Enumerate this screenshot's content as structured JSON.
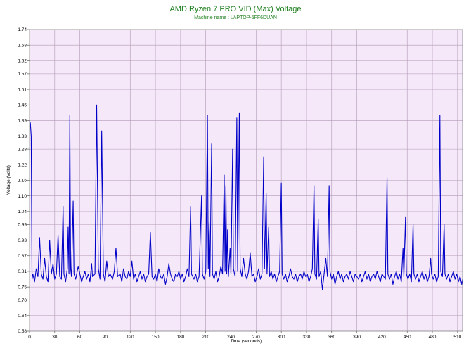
{
  "chart_data": {
    "type": "line",
    "title": "AMD Ryzen 7 PRO VID (Max) Voltage",
    "subtitle": "Machine name : LAPTOP-5FF6DUAN",
    "xlabel": "Time (seconds)",
    "ylabel": "Voltage (Volts)",
    "xlim": [
      0,
      516
    ],
    "ylim": [
      0.58,
      1.74
    ],
    "x_ticks": [
      "0",
      "30",
      "60",
      "90",
      "120",
      "150",
      "180",
      "210",
      "240",
      "270",
      "300",
      "330",
      "360",
      "390",
      "420",
      "450",
      "480",
      "510"
    ],
    "y_ticks": [
      "0.58",
      "0.64",
      "0.70",
      "0.75",
      "0.81",
      "0.87",
      "0.93",
      "0.99",
      "1.04",
      "1.10",
      "1.16",
      "1.22",
      "1.28",
      "1.33",
      "1.39",
      "1.45",
      "1.51",
      "1.57",
      "1.62",
      "1.68",
      "1.74"
    ],
    "grid": true,
    "legend": "none",
    "background_color": "#f5e8f8",
    "grid_color": "#b29ab8",
    "line_color": "#0000c8",
    "title_color": "#208020",
    "baseline_voltage": 0.78,
    "series": [
      {
        "points": [
          [
            0,
            1.39
          ],
          [
            1,
            1.38
          ],
          [
            2,
            1.33
          ],
          [
            3,
            0.78
          ],
          [
            4,
            0.8
          ],
          [
            6,
            0.77
          ],
          [
            8,
            0.82
          ],
          [
            10,
            0.79
          ],
          [
            12,
            0.94
          ],
          [
            14,
            0.8
          ],
          [
            16,
            0.78
          ],
          [
            18,
            0.86
          ],
          [
            20,
            0.79
          ],
          [
            22,
            0.77
          ],
          [
            24,
            0.93
          ],
          [
            26,
            0.8
          ],
          [
            28,
            0.84
          ],
          [
            30,
            0.78
          ],
          [
            32,
            0.8
          ],
          [
            34,
            0.95
          ],
          [
            36,
            0.79
          ],
          [
            38,
            0.78
          ],
          [
            40,
            1.06
          ],
          [
            41,
            0.8
          ],
          [
            43,
            0.77
          ],
          [
            45,
            0.82
          ],
          [
            46,
            0.98
          ],
          [
            47,
            0.8
          ],
          [
            48,
            1.41
          ],
          [
            49,
            0.82
          ],
          [
            50,
            0.79
          ],
          [
            52,
            1.08
          ],
          [
            53,
            0.8
          ],
          [
            55,
            0.78
          ],
          [
            58,
            0.83
          ],
          [
            60,
            0.8
          ],
          [
            62,
            0.77
          ],
          [
            64,
            0.79
          ],
          [
            66,
            0.81
          ],
          [
            68,
            0.78
          ],
          [
            70,
            0.8
          ],
          [
            72,
            0.77
          ],
          [
            74,
            0.84
          ],
          [
            75,
            0.79
          ],
          [
            78,
            0.8
          ],
          [
            80,
            1.45
          ],
          [
            82,
            0.82
          ],
          [
            84,
            0.78
          ],
          [
            86,
            1.35
          ],
          [
            88,
            0.8
          ],
          [
            90,
            0.77
          ],
          [
            92,
            0.85
          ],
          [
            94,
            0.79
          ],
          [
            96,
            0.8
          ],
          [
            99,
            0.78
          ],
          [
            101,
            0.81
          ],
          [
            103,
            0.9
          ],
          [
            105,
            0.79
          ],
          [
            108,
            0.8
          ],
          [
            110,
            0.77
          ],
          [
            112,
            0.82
          ],
          [
            114,
            0.79
          ],
          [
            116,
            0.78
          ],
          [
            118,
            0.81
          ],
          [
            120,
            0.79
          ],
          [
            122,
            0.85
          ],
          [
            124,
            0.78
          ],
          [
            126,
            0.8
          ],
          [
            128,
            0.77
          ],
          [
            130,
            0.79
          ],
          [
            132,
            0.81
          ],
          [
            134,
            0.78
          ],
          [
            136,
            0.8
          ],
          [
            138,
            0.77
          ],
          [
            140,
            0.79
          ],
          [
            142,
            0.8
          ],
          [
            144,
            0.96
          ],
          [
            146,
            0.79
          ],
          [
            148,
            0.78
          ],
          [
            150,
            0.8
          ],
          [
            152,
            0.77
          ],
          [
            154,
            0.82
          ],
          [
            156,
            0.79
          ],
          [
            158,
            0.78
          ],
          [
            160,
            0.8
          ],
          [
            162,
            0.76
          ],
          [
            164,
            0.79
          ],
          [
            166,
            0.84
          ],
          [
            168,
            0.8
          ],
          [
            170,
            0.78
          ],
          [
            172,
            0.77
          ],
          [
            174,
            0.8
          ],
          [
            176,
            0.79
          ],
          [
            178,
            0.81
          ],
          [
            180,
            0.78
          ],
          [
            182,
            0.8
          ],
          [
            184,
            0.77
          ],
          [
            186,
            0.79
          ],
          [
            188,
            0.82
          ],
          [
            190,
            0.79
          ],
          [
            192,
            1.06
          ],
          [
            193,
            0.8
          ],
          [
            196,
            0.78
          ],
          [
            198,
            0.8
          ],
          [
            200,
            0.77
          ],
          [
            202,
            0.79
          ],
          [
            205,
            1.1
          ],
          [
            206,
            0.8
          ],
          [
            208,
            0.78
          ],
          [
            210,
            0.81
          ],
          [
            212,
            1.41
          ],
          [
            213,
            0.82
          ],
          [
            214,
            1.0
          ],
          [
            215,
            0.79
          ],
          [
            217,
            1.3
          ],
          [
            218,
            0.8
          ],
          [
            220,
            0.78
          ],
          [
            222,
            0.81
          ],
          [
            224,
            0.77
          ],
          [
            226,
            0.79
          ],
          [
            228,
            0.83
          ],
          [
            230,
            0.8
          ],
          [
            232,
            1.18
          ],
          [
            233,
            0.81
          ],
          [
            234,
            1.14
          ],
          [
            235,
            0.8
          ],
          [
            236,
            0.97
          ],
          [
            237,
            0.79
          ],
          [
            239,
            0.9
          ],
          [
            240,
            0.8
          ],
          [
            242,
            1.28
          ],
          [
            243,
            0.82
          ],
          [
            245,
            0.79
          ],
          [
            247,
            1.4
          ],
          [
            248,
            0.81
          ],
          [
            250,
            1.42
          ],
          [
            251,
            0.82
          ],
          [
            253,
            0.79
          ],
          [
            255,
            0.86
          ],
          [
            257,
            0.8
          ],
          [
            259,
            0.78
          ],
          [
            261,
            0.81
          ],
          [
            263,
            0.88
          ],
          [
            265,
            0.79
          ],
          [
            267,
            0.8
          ],
          [
            269,
            0.77
          ],
          [
            271,
            0.79
          ],
          [
            273,
            0.82
          ],
          [
            275,
            0.78
          ],
          [
            277,
            0.8
          ],
          [
            279,
            1.25
          ],
          [
            280,
            0.82
          ],
          [
            282,
            1.11
          ],
          [
            283,
            0.8
          ],
          [
            285,
            0.98
          ],
          [
            286,
            0.79
          ],
          [
            288,
            0.81
          ],
          [
            290,
            0.78
          ],
          [
            292,
            0.8
          ],
          [
            294,
            0.77
          ],
          [
            296,
            0.79
          ],
          [
            298,
            0.81
          ],
          [
            300,
            1.15
          ],
          [
            301,
            0.8
          ],
          [
            303,
            0.78
          ],
          [
            305,
            0.8
          ],
          [
            307,
            0.77
          ],
          [
            309,
            0.79
          ],
          [
            311,
            0.82
          ],
          [
            313,
            0.79
          ],
          [
            315,
            0.78
          ],
          [
            317,
            0.8
          ],
          [
            319,
            0.77
          ],
          [
            321,
            0.79
          ],
          [
            323,
            0.8
          ],
          [
            325,
            0.78
          ],
          [
            327,
            0.81
          ],
          [
            329,
            0.79
          ],
          [
            331,
            0.8
          ],
          [
            333,
            0.77
          ],
          [
            335,
            0.79
          ],
          [
            337,
            0.82
          ],
          [
            339,
            1.14
          ],
          [
            340,
            0.8
          ],
          [
            342,
            0.78
          ],
          [
            344,
            1.01
          ],
          [
            345,
            0.79
          ],
          [
            347,
            0.81
          ],
          [
            349,
            0.74
          ],
          [
            351,
            0.8
          ],
          [
            353,
            0.86
          ],
          [
            355,
            0.79
          ],
          [
            357,
            1.14
          ],
          [
            358,
            0.81
          ],
          [
            360,
            0.78
          ],
          [
            362,
            0.8
          ],
          [
            364,
            0.76
          ],
          [
            366,
            0.79
          ],
          [
            368,
            0.81
          ],
          [
            370,
            0.78
          ],
          [
            372,
            0.8
          ],
          [
            374,
            0.77
          ],
          [
            376,
            0.79
          ],
          [
            378,
            0.8
          ],
          [
            380,
            0.78
          ],
          [
            382,
            0.81
          ],
          [
            384,
            0.79
          ],
          [
            386,
            0.77
          ],
          [
            388,
            0.8
          ],
          [
            390,
            0.79
          ],
          [
            392,
            0.78
          ],
          [
            394,
            0.8
          ],
          [
            396,
            0.77
          ],
          [
            398,
            0.79
          ],
          [
            400,
            0.81
          ],
          [
            402,
            0.78
          ],
          [
            404,
            0.8
          ],
          [
            406,
            0.77
          ],
          [
            408,
            0.79
          ],
          [
            410,
            0.8
          ],
          [
            412,
            0.78
          ],
          [
            414,
            0.81
          ],
          [
            416,
            0.79
          ],
          [
            418,
            0.77
          ],
          [
            420,
            0.8
          ],
          [
            422,
            0.79
          ],
          [
            424,
            0.78
          ],
          [
            426,
            1.17
          ],
          [
            427,
            0.8
          ],
          [
            429,
            0.78
          ],
          [
            431,
            0.8
          ],
          [
            433,
            0.76
          ],
          [
            435,
            0.79
          ],
          [
            437,
            0.81
          ],
          [
            439,
            0.78
          ],
          [
            441,
            0.8
          ],
          [
            443,
            0.77
          ],
          [
            445,
            0.9
          ],
          [
            446,
            0.79
          ],
          [
            448,
            1.02
          ],
          [
            449,
            0.8
          ],
          [
            451,
            0.78
          ],
          [
            453,
            0.8
          ],
          [
            455,
            0.77
          ],
          [
            457,
            0.99
          ],
          [
            458,
            0.8
          ],
          [
            460,
            0.78
          ],
          [
            462,
            0.8
          ],
          [
            464,
            0.77
          ],
          [
            466,
            0.79
          ],
          [
            468,
            0.81
          ],
          [
            470,
            0.78
          ],
          [
            472,
            0.8
          ],
          [
            474,
            0.77
          ],
          [
            476,
            0.79
          ],
          [
            478,
            0.86
          ],
          [
            479,
            0.8
          ],
          [
            481,
            0.78
          ],
          [
            483,
            0.8
          ],
          [
            485,
            0.77
          ],
          [
            487,
            0.79
          ],
          [
            489,
            1.41
          ],
          [
            490,
            0.81
          ],
          [
            492,
            0.79
          ],
          [
            494,
            0.99
          ],
          [
            495,
            0.8
          ],
          [
            497,
            0.78
          ],
          [
            499,
            0.8
          ],
          [
            501,
            0.77
          ],
          [
            503,
            0.79
          ],
          [
            505,
            0.81
          ],
          [
            507,
            0.78
          ],
          [
            509,
            0.8
          ],
          [
            511,
            0.77
          ],
          [
            513,
            0.79
          ],
          [
            515,
            0.76
          ],
          [
            516,
            0.78
          ]
        ]
      }
    ]
  }
}
